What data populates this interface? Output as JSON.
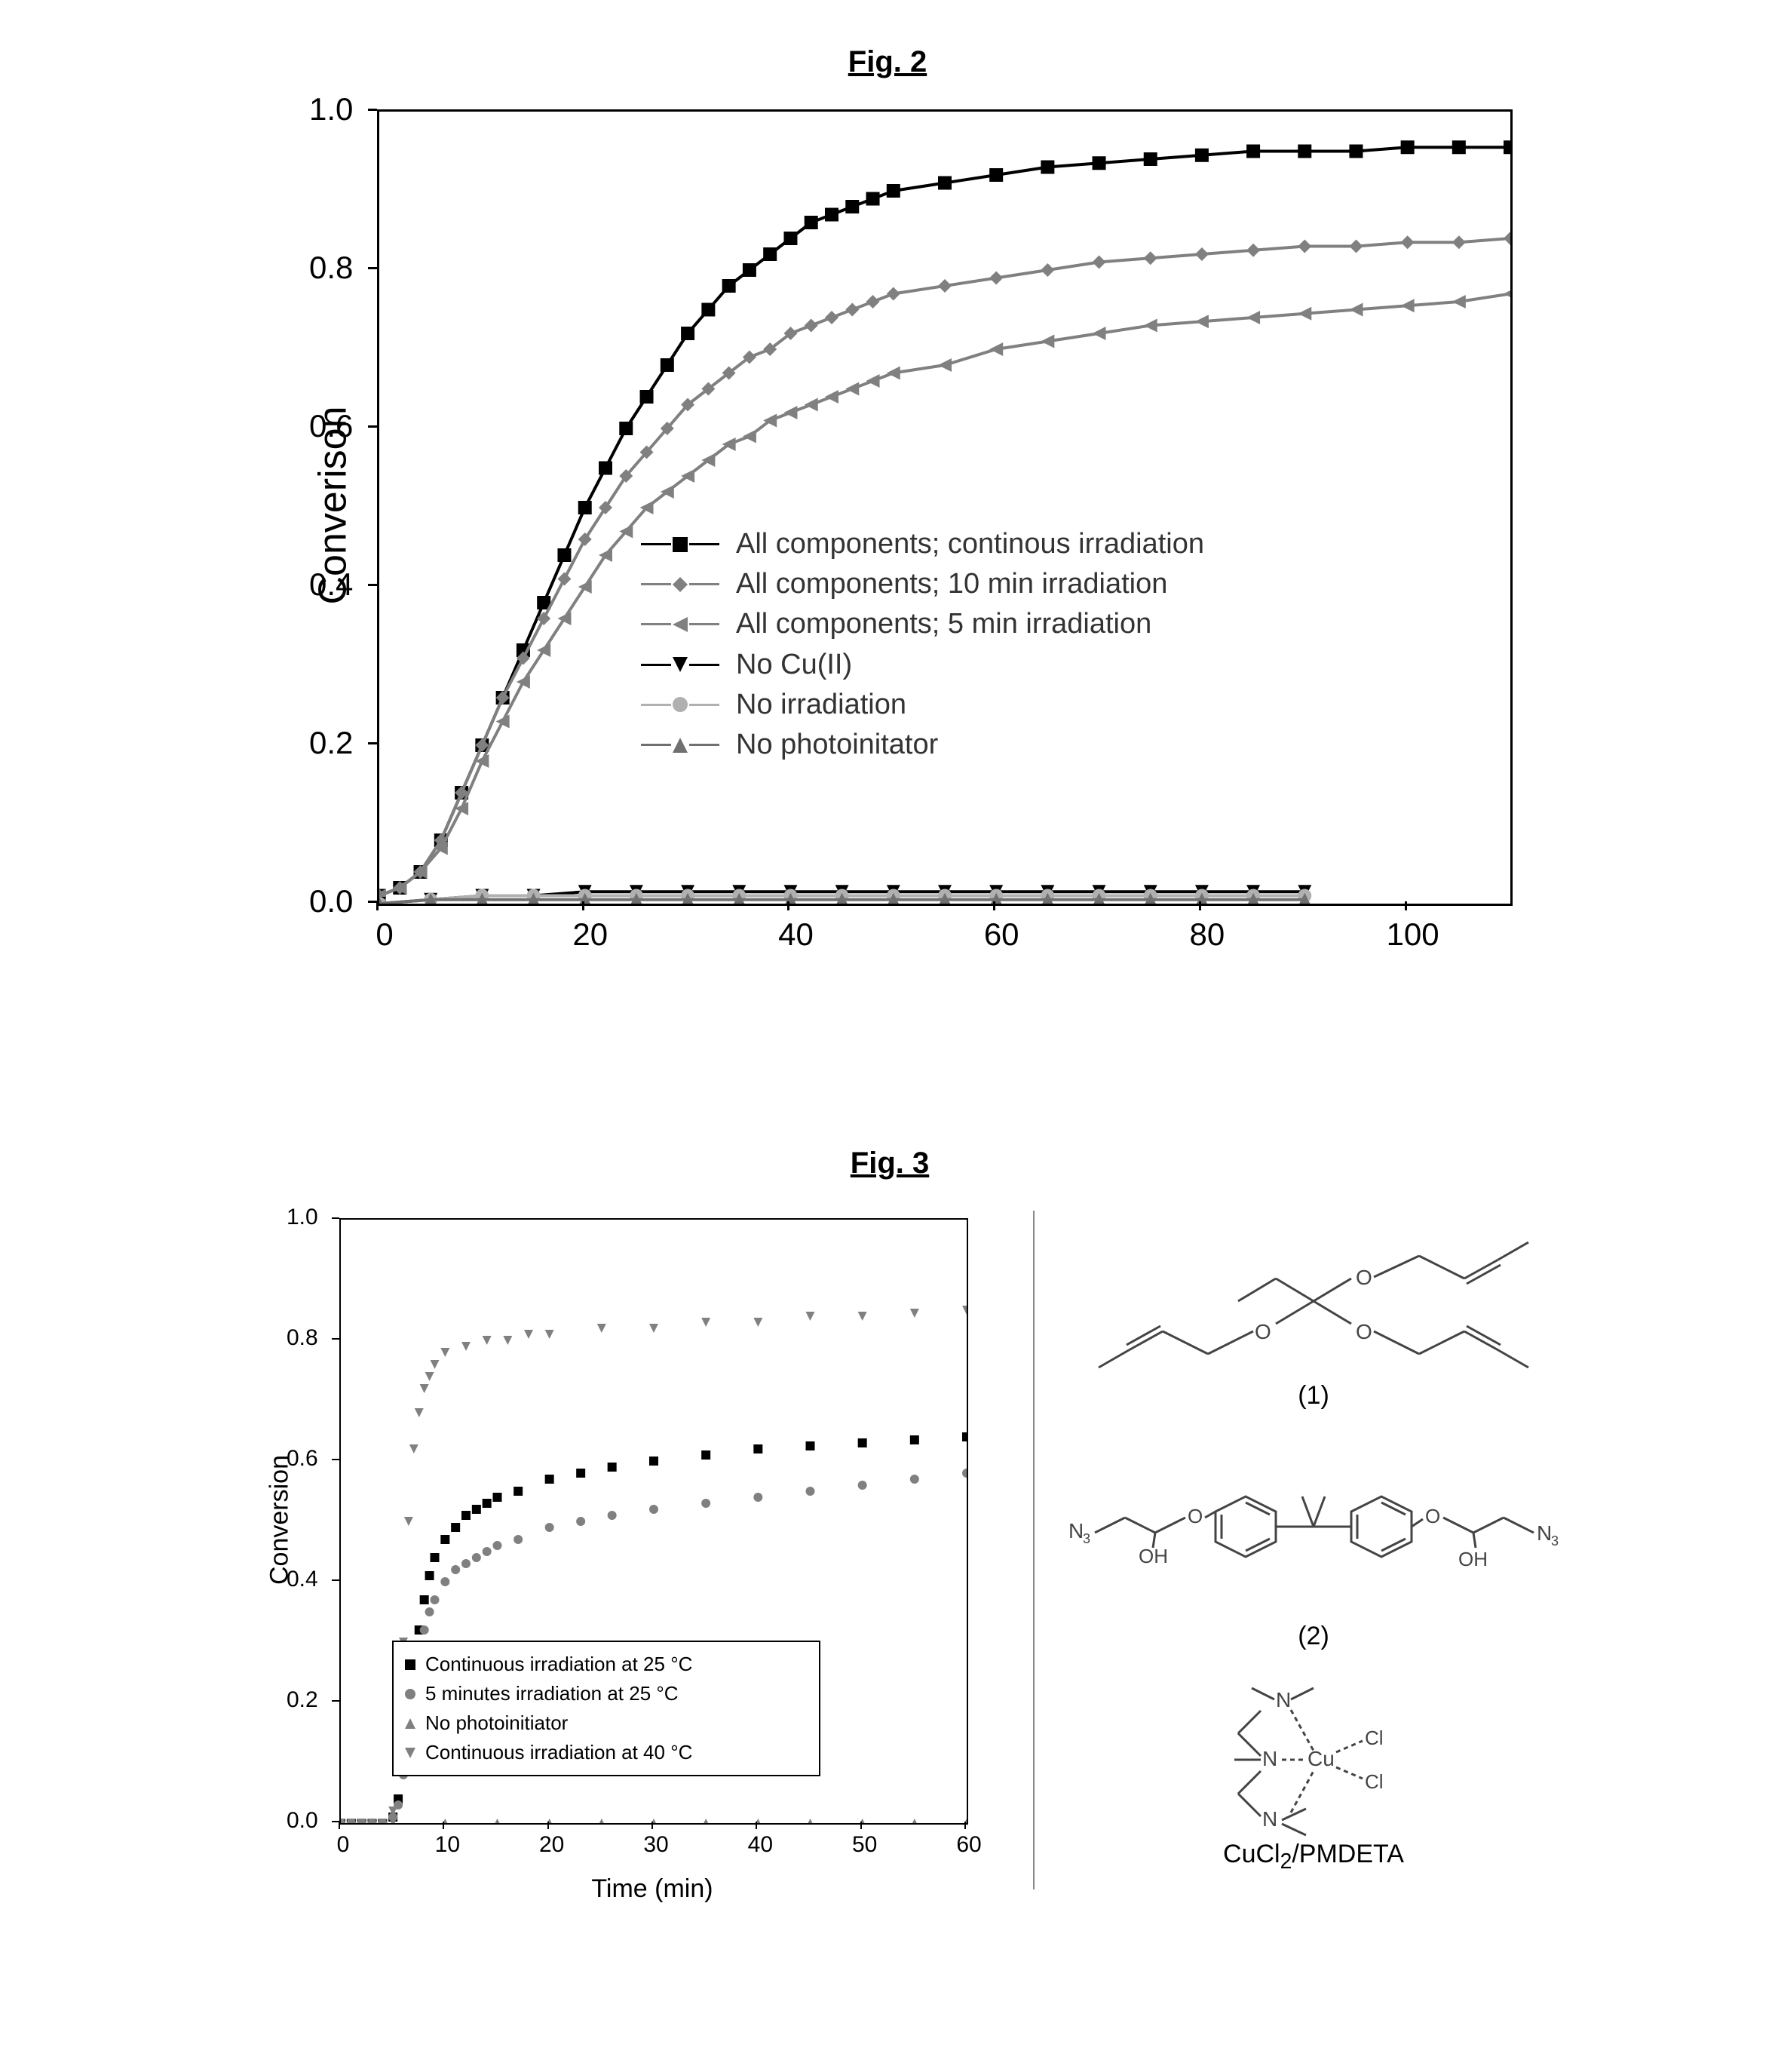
{
  "fig2": {
    "title": "Fig. 2",
    "type": "line",
    "ylabel": "Converison",
    "ylabel_fontsize": 52,
    "tick_fontsize": 42,
    "background_color": "#ffffff",
    "axis_color": "#000000",
    "xlim": [
      0,
      110
    ],
    "ylim": [
      0.0,
      1.0
    ],
    "xticks": [
      0,
      20,
      40,
      60,
      80,
      100
    ],
    "yticks": [
      "0.0",
      "0.2",
      "0.4",
      "0.6",
      "0.8",
      "1.0"
    ],
    "ytick_values": [
      0.0,
      0.2,
      0.4,
      0.6,
      0.8,
      1.0
    ],
    "series": [
      {
        "label": "All components; continous irradiation",
        "color": "#000000",
        "marker": "square",
        "line_width": 3,
        "data": [
          [
            0,
            0.01
          ],
          [
            2,
            0.02
          ],
          [
            4,
            0.04
          ],
          [
            6,
            0.08
          ],
          [
            8,
            0.14
          ],
          [
            10,
            0.2
          ],
          [
            12,
            0.26
          ],
          [
            14,
            0.32
          ],
          [
            16,
            0.38
          ],
          [
            18,
            0.44
          ],
          [
            20,
            0.5
          ],
          [
            22,
            0.55
          ],
          [
            24,
            0.6
          ],
          [
            26,
            0.64
          ],
          [
            28,
            0.68
          ],
          [
            30,
            0.72
          ],
          [
            32,
            0.75
          ],
          [
            34,
            0.78
          ],
          [
            36,
            0.8
          ],
          [
            38,
            0.82
          ],
          [
            40,
            0.84
          ],
          [
            42,
            0.86
          ],
          [
            44,
            0.87
          ],
          [
            46,
            0.88
          ],
          [
            48,
            0.89
          ],
          [
            50,
            0.9
          ],
          [
            55,
            0.91
          ],
          [
            60,
            0.92
          ],
          [
            65,
            0.93
          ],
          [
            70,
            0.935
          ],
          [
            75,
            0.94
          ],
          [
            80,
            0.945
          ],
          [
            85,
            0.95
          ],
          [
            90,
            0.95
          ],
          [
            95,
            0.95
          ],
          [
            100,
            0.955
          ],
          [
            105,
            0.955
          ],
          [
            110,
            0.955
          ]
        ]
      },
      {
        "label": "All components; 10 min irradiation",
        "color": "#808080",
        "marker": "diamond",
        "line_width": 3,
        "data": [
          [
            0,
            0.01
          ],
          [
            2,
            0.02
          ],
          [
            4,
            0.04
          ],
          [
            6,
            0.08
          ],
          [
            8,
            0.14
          ],
          [
            10,
            0.2
          ],
          [
            12,
            0.26
          ],
          [
            14,
            0.31
          ],
          [
            16,
            0.36
          ],
          [
            18,
            0.41
          ],
          [
            20,
            0.46
          ],
          [
            22,
            0.5
          ],
          [
            24,
            0.54
          ],
          [
            26,
            0.57
          ],
          [
            28,
            0.6
          ],
          [
            30,
            0.63
          ],
          [
            32,
            0.65
          ],
          [
            34,
            0.67
          ],
          [
            36,
            0.69
          ],
          [
            38,
            0.7
          ],
          [
            40,
            0.72
          ],
          [
            42,
            0.73
          ],
          [
            44,
            0.74
          ],
          [
            46,
            0.75
          ],
          [
            48,
            0.76
          ],
          [
            50,
            0.77
          ],
          [
            55,
            0.78
          ],
          [
            60,
            0.79
          ],
          [
            65,
            0.8
          ],
          [
            70,
            0.81
          ],
          [
            75,
            0.815
          ],
          [
            80,
            0.82
          ],
          [
            85,
            0.825
          ],
          [
            90,
            0.83
          ],
          [
            95,
            0.83
          ],
          [
            100,
            0.835
          ],
          [
            105,
            0.835
          ],
          [
            110,
            0.84
          ]
        ]
      },
      {
        "label": "All components; 5 min irradiation",
        "color": "#808080",
        "marker": "triangle-left",
        "line_width": 3,
        "data": [
          [
            0,
            0.01
          ],
          [
            2,
            0.02
          ],
          [
            4,
            0.04
          ],
          [
            6,
            0.07
          ],
          [
            8,
            0.12
          ],
          [
            10,
            0.18
          ],
          [
            12,
            0.23
          ],
          [
            14,
            0.28
          ],
          [
            16,
            0.32
          ],
          [
            18,
            0.36
          ],
          [
            20,
            0.4
          ],
          [
            22,
            0.44
          ],
          [
            24,
            0.47
          ],
          [
            26,
            0.5
          ],
          [
            28,
            0.52
          ],
          [
            30,
            0.54
          ],
          [
            32,
            0.56
          ],
          [
            34,
            0.58
          ],
          [
            36,
            0.59
          ],
          [
            38,
            0.61
          ],
          [
            40,
            0.62
          ],
          [
            42,
            0.63
          ],
          [
            44,
            0.64
          ],
          [
            46,
            0.65
          ],
          [
            48,
            0.66
          ],
          [
            50,
            0.67
          ],
          [
            55,
            0.68
          ],
          [
            60,
            0.7
          ],
          [
            65,
            0.71
          ],
          [
            70,
            0.72
          ],
          [
            75,
            0.73
          ],
          [
            80,
            0.735
          ],
          [
            85,
            0.74
          ],
          [
            90,
            0.745
          ],
          [
            95,
            0.75
          ],
          [
            100,
            0.755
          ],
          [
            105,
            0.76
          ],
          [
            110,
            0.77
          ]
        ]
      },
      {
        "label": "No Cu(II)",
        "color": "#000000",
        "marker": "triangle-down",
        "line_width": 3,
        "data": [
          [
            0,
            0.0
          ],
          [
            5,
            0.005
          ],
          [
            10,
            0.01
          ],
          [
            15,
            0.01
          ],
          [
            20,
            0.015
          ],
          [
            25,
            0.015
          ],
          [
            30,
            0.015
          ],
          [
            35,
            0.015
          ],
          [
            40,
            0.015
          ],
          [
            45,
            0.015
          ],
          [
            50,
            0.015
          ],
          [
            55,
            0.015
          ],
          [
            60,
            0.015
          ],
          [
            65,
            0.015
          ],
          [
            70,
            0.015
          ],
          [
            75,
            0.015
          ],
          [
            80,
            0.015
          ],
          [
            85,
            0.015
          ],
          [
            90,
            0.015
          ]
        ]
      },
      {
        "label": "No irradiation",
        "color": "#b0b0b0",
        "marker": "circle",
        "line_width": 3,
        "data": [
          [
            0,
            0.0
          ],
          [
            5,
            0.005
          ],
          [
            10,
            0.01
          ],
          [
            15,
            0.01
          ],
          [
            20,
            0.01
          ],
          [
            25,
            0.01
          ],
          [
            30,
            0.01
          ],
          [
            35,
            0.01
          ],
          [
            40,
            0.01
          ],
          [
            45,
            0.01
          ],
          [
            50,
            0.01
          ],
          [
            55,
            0.01
          ],
          [
            60,
            0.01
          ],
          [
            65,
            0.01
          ],
          [
            70,
            0.01
          ],
          [
            75,
            0.01
          ],
          [
            80,
            0.01
          ],
          [
            85,
            0.01
          ],
          [
            90,
            0.01
          ]
        ]
      },
      {
        "label": "No photoinitator",
        "color": "#707070",
        "marker": "triangle-up",
        "line_width": 3,
        "data": [
          [
            0,
            0.0
          ],
          [
            5,
            0.005
          ],
          [
            10,
            0.005
          ],
          [
            15,
            0.005
          ],
          [
            20,
            0.005
          ],
          [
            25,
            0.005
          ],
          [
            30,
            0.005
          ],
          [
            35,
            0.005
          ],
          [
            40,
            0.005
          ],
          [
            45,
            0.005
          ],
          [
            50,
            0.005
          ],
          [
            55,
            0.005
          ],
          [
            60,
            0.005
          ],
          [
            65,
            0.005
          ],
          [
            70,
            0.005
          ],
          [
            75,
            0.005
          ],
          [
            80,
            0.005
          ],
          [
            85,
            0.005
          ],
          [
            90,
            0.005
          ]
        ]
      }
    ]
  },
  "fig3": {
    "title": "Fig. 3",
    "chart": {
      "type": "scatter-line",
      "ylabel": "Conversion",
      "xlabel": "Time (min)",
      "label_fontsize": 34,
      "tick_fontsize": 30,
      "background_color": "#ffffff",
      "axis_color": "#000000",
      "xlim": [
        0,
        60
      ],
      "ylim": [
        0.0,
        1.0
      ],
      "xticks": [
        0,
        10,
        20,
        30,
        40,
        50,
        60
      ],
      "yticks": [
        "0.0",
        "0.2",
        "0.4",
        "0.6",
        "0.8",
        "1.0"
      ],
      "ytick_values": [
        0.0,
        0.2,
        0.4,
        0.6,
        0.8,
        1.0
      ],
      "legend_border_color": "#000000",
      "legend_fontsize": 26,
      "series": [
        {
          "label": "Continuous irradiation at 25 °C",
          "color": "#000000",
          "marker": "square",
          "data": [
            [
              0,
              0.0
            ],
            [
              1,
              0.0
            ],
            [
              2,
              0.0
            ],
            [
              3,
              0.0
            ],
            [
              4,
              0.0
            ],
            [
              5,
              0.01
            ],
            [
              5.5,
              0.04
            ],
            [
              6,
              0.1
            ],
            [
              6.5,
              0.18
            ],
            [
              7,
              0.26
            ],
            [
              7.5,
              0.32
            ],
            [
              8,
              0.37
            ],
            [
              8.5,
              0.41
            ],
            [
              9,
              0.44
            ],
            [
              10,
              0.47
            ],
            [
              11,
              0.49
            ],
            [
              12,
              0.51
            ],
            [
              13,
              0.52
            ],
            [
              14,
              0.53
            ],
            [
              15,
              0.54
            ],
            [
              17,
              0.55
            ],
            [
              20,
              0.57
            ],
            [
              23,
              0.58
            ],
            [
              26,
              0.59
            ],
            [
              30,
              0.6
            ],
            [
              35,
              0.61
            ],
            [
              40,
              0.62
            ],
            [
              45,
              0.625
            ],
            [
              50,
              0.63
            ],
            [
              55,
              0.635
            ],
            [
              60,
              0.64
            ]
          ]
        },
        {
          "label": "5 minutes irradiation at 25 °C",
          "color": "#808080",
          "marker": "circle",
          "data": [
            [
              0,
              0.0
            ],
            [
              1,
              0.0
            ],
            [
              2,
              0.0
            ],
            [
              3,
              0.0
            ],
            [
              4,
              0.0
            ],
            [
              5,
              0.01
            ],
            [
              5.5,
              0.03
            ],
            [
              6,
              0.08
            ],
            [
              6.5,
              0.15
            ],
            [
              7,
              0.22
            ],
            [
              7.5,
              0.28
            ],
            [
              8,
              0.32
            ],
            [
              8.5,
              0.35
            ],
            [
              9,
              0.37
            ],
            [
              10,
              0.4
            ],
            [
              11,
              0.42
            ],
            [
              12,
              0.43
            ],
            [
              13,
              0.44
            ],
            [
              14,
              0.45
            ],
            [
              15,
              0.46
            ],
            [
              17,
              0.47
            ],
            [
              20,
              0.49
            ],
            [
              23,
              0.5
            ],
            [
              26,
              0.51
            ],
            [
              30,
              0.52
            ],
            [
              35,
              0.53
            ],
            [
              40,
              0.54
            ],
            [
              45,
              0.55
            ],
            [
              50,
              0.56
            ],
            [
              55,
              0.57
            ],
            [
              60,
              0.58
            ]
          ]
        },
        {
          "label": "No photoinitiator",
          "color": "#808080",
          "marker": "triangle-up",
          "data": [
            [
              0,
              0.0
            ],
            [
              5,
              0.0
            ],
            [
              10,
              0.0
            ],
            [
              15,
              0.0
            ],
            [
              20,
              0.0
            ],
            [
              25,
              0.0
            ],
            [
              30,
              0.0
            ],
            [
              35,
              0.0
            ],
            [
              40,
              0.0
            ],
            [
              45,
              0.0
            ],
            [
              50,
              0.0
            ],
            [
              55,
              0.0
            ],
            [
              60,
              0.0
            ]
          ]
        },
        {
          "label": "Continuous irradiation at 40 °C",
          "color": "#808080",
          "marker": "triangle-down",
          "data": [
            [
              0,
              0.0
            ],
            [
              1,
              0.0
            ],
            [
              2,
              0.0
            ],
            [
              3,
              0.0
            ],
            [
              4,
              0.0
            ],
            [
              5,
              0.02
            ],
            [
              5.5,
              0.1
            ],
            [
              6,
              0.3
            ],
            [
              6.5,
              0.5
            ],
            [
              7,
              0.62
            ],
            [
              7.5,
              0.68
            ],
            [
              8,
              0.72
            ],
            [
              8.5,
              0.74
            ],
            [
              9,
              0.76
            ],
            [
              10,
              0.78
            ],
            [
              12,
              0.79
            ],
            [
              14,
              0.8
            ],
            [
              16,
              0.8
            ],
            [
              18,
              0.81
            ],
            [
              20,
              0.81
            ],
            [
              25,
              0.82
            ],
            [
              30,
              0.82
            ],
            [
              35,
              0.83
            ],
            [
              40,
              0.83
            ],
            [
              45,
              0.84
            ],
            [
              50,
              0.84
            ],
            [
              55,
              0.845
            ],
            [
              60,
              0.85
            ]
          ]
        }
      ]
    },
    "chemistry": {
      "compound1_label": "(1)",
      "compound2_label": "(2)",
      "compound3_label": "CuCl2/PMDETA",
      "stroke_color": "#444444",
      "text_color": "#000000"
    }
  }
}
